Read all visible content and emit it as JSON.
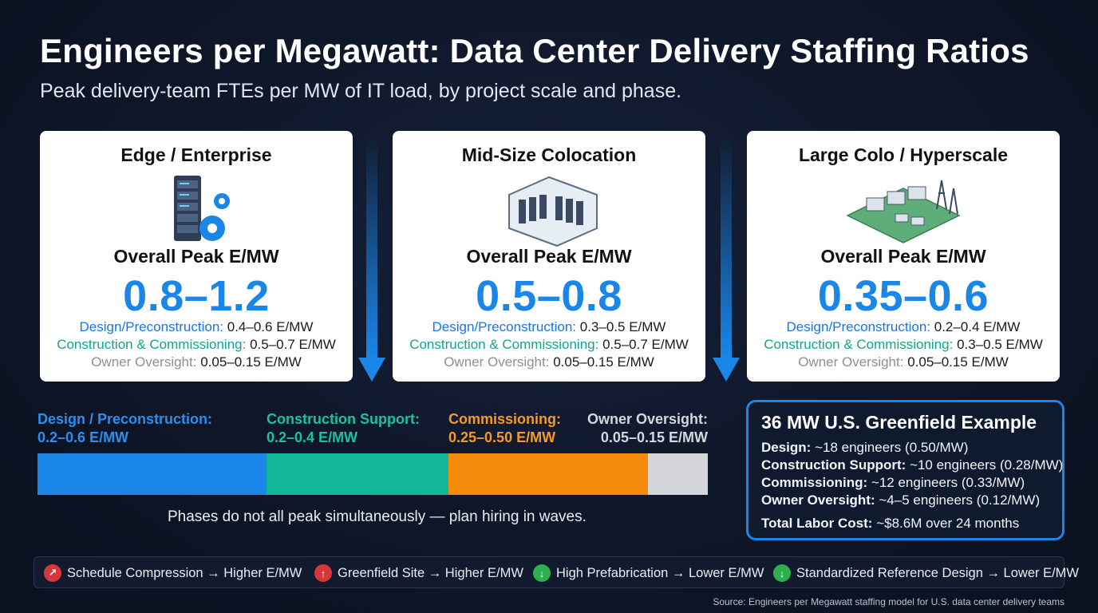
{
  "header": {
    "title": "Engineers per Megawatt: Data Center Delivery Staffing Ratios",
    "subtitle": "Peak delivery-team FTEs per MW of IT load, by project scale and phase."
  },
  "cards": [
    {
      "title": "Edge / Enterprise",
      "icon": "server-rack-gear-icon",
      "label": "Overall Peak E/MW",
      "value": "0.8–1.2",
      "design_label": "Design/Preconstruction:",
      "design_value": "0.4–0.6 E/MW",
      "construction_label": "Construction & Commissioning:",
      "construction_value": "0.5–0.7 E/MW",
      "owner_label": "Owner Oversight:",
      "owner_value": "0.05–0.15 E/MW"
    },
    {
      "title": "Mid-Size Colocation",
      "icon": "colocation-hall-icon",
      "label": "Overall Peak E/MW",
      "value": "0.5–0.8",
      "design_label": "Design/Preconstruction:",
      "design_value": "0.3–0.5 E/MW",
      "construction_label": "Construction & Commissioning:",
      "construction_value": "0.5–0.7 E/MW",
      "owner_label": "Owner Oversight:",
      "owner_value": "0.05–0.15 E/MW"
    },
    {
      "title": "Large Colo / Hyperscale",
      "icon": "hyperscale-campus-icon",
      "label": "Overall Peak E/MW",
      "value": "0.35–0.6",
      "design_label": "Design/Preconstruction:",
      "design_value": "0.2–0.4 E/MW",
      "construction_label": "Construction & Commissioning:",
      "construction_value": "0.3–0.5 E/MW",
      "owner_label": "Owner Oversight:",
      "owner_value": "0.05–0.15 E/MW"
    }
  ],
  "phases": [
    {
      "name": "Design / Preconstruction:",
      "range": "0.2–0.6 E/MW",
      "color": "#1a86e8",
      "share": 0.342
    },
    {
      "name": "Construction Support:",
      "range": "0.2–0.4 E/MW",
      "color": "#13b89a",
      "share": 0.272
    },
    {
      "name": "Commissioning:",
      "range": "0.25–0.50 E/MW",
      "color": "#f58a0b",
      "share": 0.298
    },
    {
      "name": "Owner Oversight:",
      "range": "0.05–0.15 E/MW",
      "color": "#d4d6da",
      "share": 0.088
    }
  ],
  "phase_note": "Phases do not all peak simultaneously — plan hiring in waves.",
  "example": {
    "title": "36 MW U.S. Greenfield Example",
    "rows": [
      {
        "label": "Design:",
        "text": "~18 engineers (0.50/MW)"
      },
      {
        "label": "Construction Support:",
        "text": "~10 engineers (0.28/MW)"
      },
      {
        "label": "Commissioning:",
        "text": "~12 engineers (0.33/MW)"
      },
      {
        "label": "Owner Oversight:",
        "text": "~4–5 engineers (0.12/MW)"
      },
      {
        "label": "Total Labor Cost:",
        "text": "~$8.6M over 24 months"
      }
    ]
  },
  "factors": [
    {
      "icon": "arrow-up-right-icon",
      "symbol": "↗",
      "tone": "red",
      "text": "Schedule Compression → Higher E/MW"
    },
    {
      "icon": "arrow-up-icon",
      "symbol": "↑",
      "tone": "red",
      "text": "Greenfield Site → Higher E/MW"
    },
    {
      "icon": "arrow-down-icon",
      "symbol": "↓",
      "tone": "green",
      "text": "High Prefabrication → Lower E/MW"
    },
    {
      "icon": "arrow-down-icon",
      "symbol": "↓",
      "tone": "green",
      "text": "Standardized Reference Design → Lower E/MW"
    }
  ],
  "source": "Source: Engineers per Megawatt staffing model for U.S. data center delivery teams"
}
